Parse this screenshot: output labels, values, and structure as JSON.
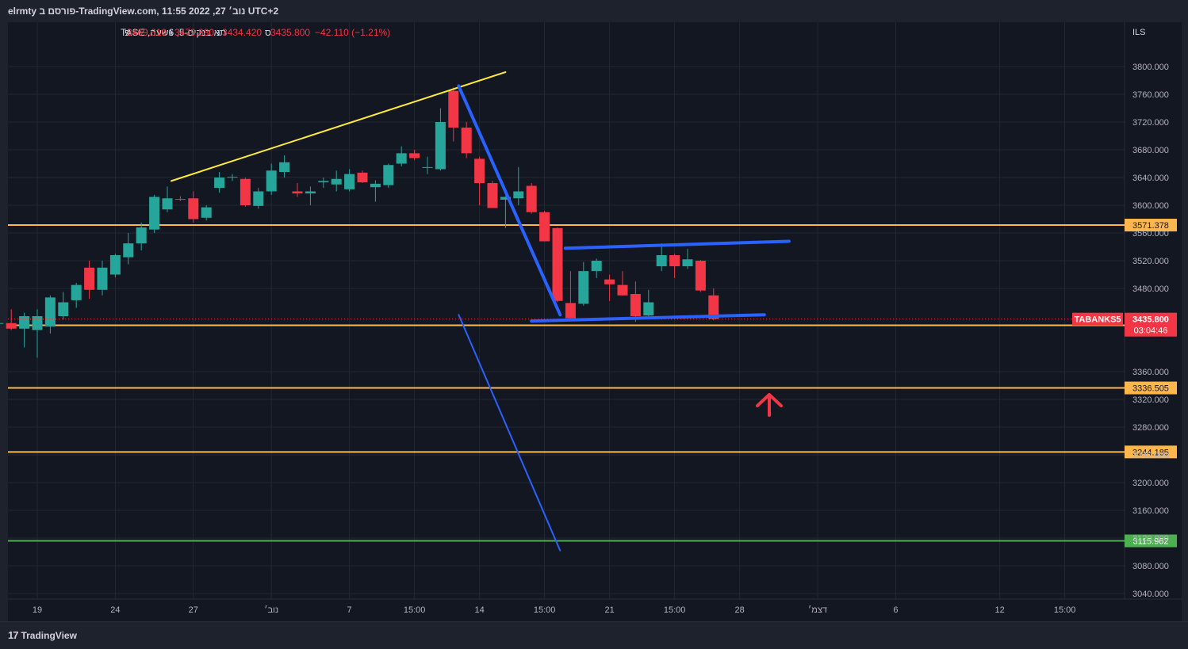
{
  "header": {
    "title": "elrmty פורסם ב-TradingView.com, נוב׳ 27, 2022 11:55 UTC+2"
  },
  "legend": {
    "symbol_text": "תא בנקים-5, 6שעה, TASE",
    "open_label": "פ",
    "open_value": "3469.610",
    "high_label": "ג",
    "high_value": "3479.880",
    "low_label": "נ",
    "low_value": "3434.420",
    "close_label": "ס",
    "close_value": "3435.800",
    "change_text": "−42.110 (−1.21%)"
  },
  "price_axis": {
    "currency": "ILS",
    "ticks": [
      {
        "value": 3800,
        "label": "3800.000"
      },
      {
        "value": 3760,
        "label": "3760.000"
      },
      {
        "value": 3720,
        "label": "3720.000"
      },
      {
        "value": 3680,
        "label": "3680.000"
      },
      {
        "value": 3640,
        "label": "3640.000"
      },
      {
        "value": 3600,
        "label": "3600.000"
      },
      {
        "value": 3560,
        "label": "3560.000"
      },
      {
        "value": 3520,
        "label": "3520.000"
      },
      {
        "value": 3480,
        "label": "3480.000"
      },
      {
        "value": 3360,
        "label": "3360.000"
      },
      {
        "value": 3320,
        "label": "3320.000"
      },
      {
        "value": 3280,
        "label": "3280.000"
      },
      {
        "value": 3240,
        "label": "3240.000"
      },
      {
        "value": 3200,
        "label": "3200.000"
      },
      {
        "value": 3160,
        "label": "3160.000"
      },
      {
        "value": 3120,
        "label": "3120.000"
      },
      {
        "value": 3080,
        "label": "3080.000"
      },
      {
        "value": 3040,
        "label": "3040.000"
      }
    ]
  },
  "time_axis": {
    "ticks": [
      {
        "t": 2,
        "label": "19"
      },
      {
        "t": 8,
        "label": "24"
      },
      {
        "t": 14,
        "label": "27"
      },
      {
        "t": 20,
        "label": "נוב׳"
      },
      {
        "t": 26,
        "label": "7"
      },
      {
        "t": 31,
        "label": "15:00"
      },
      {
        "t": 36,
        "label": "14"
      },
      {
        "t": 41,
        "label": "15:00"
      },
      {
        "t": 46,
        "label": "21"
      },
      {
        "t": 51,
        "label": "15:00"
      },
      {
        "t": 56,
        "label": "28"
      },
      {
        "t": 62,
        "label": "דצמ׳"
      },
      {
        "t": 68,
        "label": "6"
      },
      {
        "t": 76,
        "label": "12"
      },
      {
        "t": 81,
        "label": "15:00"
      }
    ]
  },
  "price_badges": {
    "symbol_tag": "TABANKS5",
    "last_price": "3435.800",
    "countdown": "03:04:46"
  },
  "horizontal_levels": [
    {
      "price": 3571.378,
      "label": "3571.378",
      "color": "#ffb74d"
    },
    {
      "price": 3426.786,
      "label": "3426.786",
      "color": "#ffb74d"
    },
    {
      "price": 3336.505,
      "label": "3336.505",
      "color": "#ffb74d"
    },
    {
      "price": 3244.185,
      "label": "3244.185",
      "color": "#ffb74d"
    },
    {
      "price": 3115.962,
      "label": "3115.962",
      "color": "#4caf50"
    }
  ],
  "colors": {
    "up": "#26a69a",
    "down": "#f23645",
    "background": "#131722",
    "grid": "#232733",
    "trendline_yellow": "#ffeb3b",
    "trendline_blue": "#2962ff",
    "arrow": "#f23645"
  },
  "chart_data": {
    "type": "candlestick",
    "timeframe": "6H",
    "y_range": [
      3020,
      3840
    ],
    "candles": [
      {
        "t": -1,
        "o": 3430,
        "h": 3440,
        "l": 3415,
        "c": 3430
      },
      {
        "t": 0,
        "o": 3430,
        "h": 3450,
        "l": 3420,
        "c": 3422
      },
      {
        "t": 1,
        "o": 3422,
        "h": 3445,
        "l": 3395,
        "c": 3440
      },
      {
        "t": 2,
        "o": 3420,
        "h": 3450,
        "l": 3380,
        "c": 3440
      },
      {
        "t": 3,
        "o": 3425,
        "h": 3470,
        "l": 3415,
        "c": 3467
      },
      {
        "t": 4,
        "o": 3440,
        "h": 3475,
        "l": 3435,
        "c": 3460
      },
      {
        "t": 5,
        "o": 3463,
        "h": 3488,
        "l": 3452,
        "c": 3485
      },
      {
        "t": 6,
        "o": 3510,
        "h": 3520,
        "l": 3465,
        "c": 3478
      },
      {
        "t": 7,
        "o": 3478,
        "h": 3520,
        "l": 3470,
        "c": 3510
      },
      {
        "t": 8,
        "o": 3500,
        "h": 3530,
        "l": 3496,
        "c": 3528
      },
      {
        "t": 9,
        "o": 3525,
        "h": 3560,
        "l": 3515,
        "c": 3545
      },
      {
        "t": 10,
        "o": 3545,
        "h": 3575,
        "l": 3535,
        "c": 3568
      },
      {
        "t": 11,
        "o": 3565,
        "h": 3615,
        "l": 3560,
        "c": 3612
      },
      {
        "t": 12,
        "o": 3594,
        "h": 3627,
        "l": 3590,
        "c": 3610
      },
      {
        "t": 13,
        "o": 3609,
        "h": 3613,
        "l": 3606,
        "c": 3608
      },
      {
        "t": 14,
        "o": 3610,
        "h": 3620,
        "l": 3575,
        "c": 3580
      },
      {
        "t": 15,
        "o": 3582,
        "h": 3600,
        "l": 3578,
        "c": 3597
      },
      {
        "t": 16,
        "o": 3625,
        "h": 3648,
        "l": 3618,
        "c": 3640
      },
      {
        "t": 17,
        "o": 3640,
        "h": 3645,
        "l": 3635,
        "c": 3641
      },
      {
        "t": 18,
        "o": 3638,
        "h": 3640,
        "l": 3598,
        "c": 3600
      },
      {
        "t": 19,
        "o": 3599,
        "h": 3625,
        "l": 3595,
        "c": 3620
      },
      {
        "t": 20,
        "o": 3620,
        "h": 3660,
        "l": 3615,
        "c": 3650
      },
      {
        "t": 21,
        "o": 3648,
        "h": 3672,
        "l": 3640,
        "c": 3662
      },
      {
        "t": 22,
        "o": 3620,
        "h": 3632,
        "l": 3612,
        "c": 3617
      },
      {
        "t": 23,
        "o": 3617,
        "h": 3627,
        "l": 3600,
        "c": 3620
      },
      {
        "t": 24,
        "o": 3633,
        "h": 3640,
        "l": 3625,
        "c": 3635
      },
      {
        "t": 25,
        "o": 3630,
        "h": 3650,
        "l": 3620,
        "c": 3638
      },
      {
        "t": 26,
        "o": 3623,
        "h": 3652,
        "l": 3620,
        "c": 3645
      },
      {
        "t": 27,
        "o": 3647,
        "h": 3650,
        "l": 3632,
        "c": 3633
      },
      {
        "t": 28,
        "o": 3626,
        "h": 3636,
        "l": 3605,
        "c": 3631
      },
      {
        "t": 29,
        "o": 3629,
        "h": 3660,
        "l": 3625,
        "c": 3658
      },
      {
        "t": 30,
        "o": 3660,
        "h": 3685,
        "l": 3656,
        "c": 3675
      },
      {
        "t": 31,
        "o": 3675,
        "h": 3680,
        "l": 3665,
        "c": 3668
      },
      {
        "t": 32,
        "o": 3655,
        "h": 3670,
        "l": 3645,
        "c": 3655
      },
      {
        "t": 33,
        "o": 3652,
        "h": 3740,
        "l": 3650,
        "c": 3720
      },
      {
        "t": 34,
        "o": 3765,
        "h": 3770,
        "l": 3692,
        "c": 3712
      },
      {
        "t": 35,
        "o": 3712,
        "h": 3720,
        "l": 3668,
        "c": 3675
      },
      {
        "t": 36,
        "o": 3667,
        "h": 3670,
        "l": 3600,
        "c": 3632
      },
      {
        "t": 37,
        "o": 3632,
        "h": 3635,
        "l": 3600,
        "c": 3596
      },
      {
        "t": 38,
        "o": 3608,
        "h": 3613,
        "l": 3567,
        "c": 3612
      },
      {
        "t": 39,
        "o": 3610,
        "h": 3655,
        "l": 3600,
        "c": 3620
      },
      {
        "t": 40,
        "o": 3628,
        "h": 3632,
        "l": 3588,
        "c": 3590
      },
      {
        "t": 41,
        "o": 3590,
        "h": 3592,
        "l": 3550,
        "c": 3548
      },
      {
        "t": 42,
        "o": 3567,
        "h": 3568,
        "l": 3460,
        "c": 3462
      },
      {
        "t": 43,
        "o": 3459,
        "h": 3505,
        "l": 3435,
        "c": 3437
      },
      {
        "t": 44,
        "o": 3458,
        "h": 3518,
        "l": 3455,
        "c": 3505
      },
      {
        "t": 45,
        "o": 3505,
        "h": 3523,
        "l": 3495,
        "c": 3520
      },
      {
        "t": 46,
        "o": 3493,
        "h": 3500,
        "l": 3462,
        "c": 3486
      },
      {
        "t": 47,
        "o": 3485,
        "h": 3505,
        "l": 3470,
        "c": 3470
      },
      {
        "t": 48,
        "o": 3472,
        "h": 3490,
        "l": 3432,
        "c": 3440
      },
      {
        "t": 49,
        "o": 3441,
        "h": 3478,
        "l": 3440,
        "c": 3460
      },
      {
        "t": 50,
        "o": 3512,
        "h": 3545,
        "l": 3505,
        "c": 3528
      },
      {
        "t": 51,
        "o": 3528,
        "h": 3530,
        "l": 3495,
        "c": 3512
      },
      {
        "t": 52,
        "o": 3512,
        "h": 3537,
        "l": 3508,
        "c": 3522
      },
      {
        "t": 53,
        "o": 3520,
        "h": 3521,
        "l": 3475,
        "c": 3477
      },
      {
        "t": 54,
        "o": 3470,
        "h": 3480,
        "l": 3434,
        "c": 3436
      }
    ],
    "trendlines": [
      {
        "name": "yellow",
        "from": {
          "t": 12.3,
          "p": 3635
        },
        "to": {
          "t": 38.0,
          "p": 3792
        }
      },
      {
        "name": "blue-1",
        "from": {
          "t": 34.4,
          "p": 3772
        },
        "to": {
          "t": 42.2,
          "p": 3442
        }
      },
      {
        "name": "blue-2",
        "from": {
          "t": 40.0,
          "p": 3433
        },
        "to": {
          "t": 57.9,
          "p": 3442
        }
      },
      {
        "name": "blue-3",
        "from": {
          "t": 42.6,
          "p": 3538
        },
        "to": {
          "t": 59.8,
          "p": 3548
        }
      },
      {
        "name": "blue-4",
        "from": {
          "t": 34.4,
          "p": 3442
        },
        "to": {
          "t": 42.2,
          "p": 3102
        }
      }
    ]
  }
}
